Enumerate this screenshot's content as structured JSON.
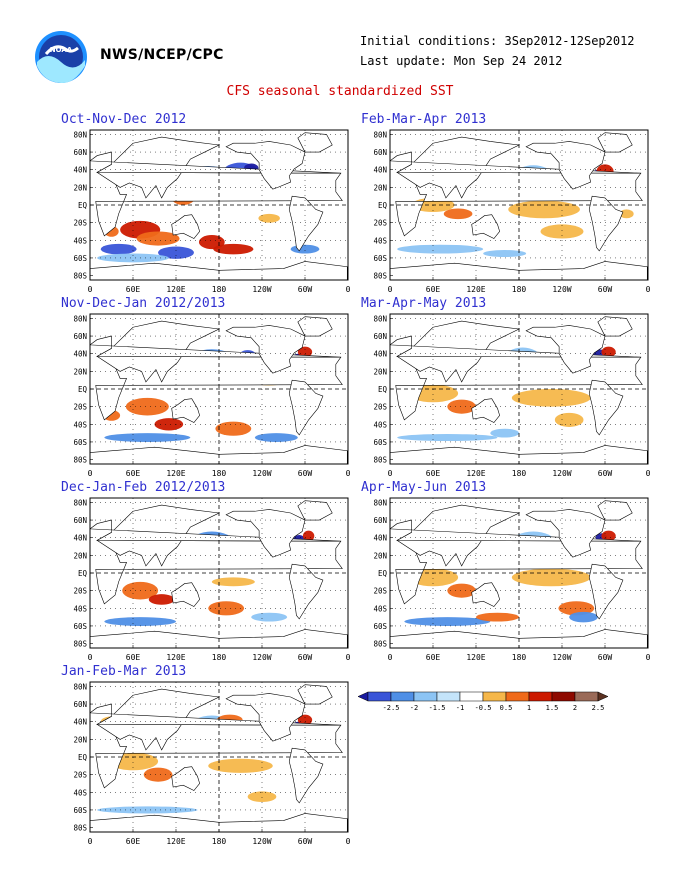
{
  "header": {
    "agency": "NWS/NCEP/CPC",
    "logo_text": "NOAA",
    "initial_conditions": "Initial conditions: 3Sep2012-12Sep2012",
    "last_update": "Last update: Mon Sep 24 2012"
  },
  "main_title": "CFS seasonal standardized SST",
  "axes": {
    "lat_labels": [
      "80N",
      "60N",
      "40N",
      "20N",
      "EQ",
      "20S",
      "40S",
      "60S",
      "80S"
    ],
    "lon_labels": [
      "0",
      "60E",
      "120E",
      "180",
      "120W",
      "60W",
      "0"
    ]
  },
  "panels": [
    {
      "id": "ond",
      "title": "Oct-Nov-Dec 2012"
    },
    {
      "id": "fma",
      "title": "Feb-Mar-Apr 2013"
    },
    {
      "id": "ndj",
      "title": "Nov-Dec-Jan 2012/2013"
    },
    {
      "id": "mam",
      "title": "Mar-Apr-May 2013"
    },
    {
      "id": "djf",
      "title": "Dec-Jan-Feb 2012/2013"
    },
    {
      "id": "amj",
      "title": "Apr-May-Jun 2013"
    },
    {
      "id": "jfm",
      "title": "Jan-Feb-Mar 2013"
    }
  ],
  "legend": {
    "labels": [
      "-2.5",
      "-2",
      "-1.5",
      "-1",
      "-0.5",
      "0.5",
      "1",
      "1.5",
      "2",
      "2.5"
    ],
    "colors": [
      "#1a1aa0",
      "#3a55d8",
      "#4f8fe6",
      "#8cc4f4",
      "#c4e4fa",
      "#ffffff",
      "#f5b74a",
      "#ef6a1a",
      "#cc1a00",
      "#8e0a00",
      "#9a6a58",
      "#5a3020"
    ]
  },
  "colors": {
    "panel_title": "#3030d0",
    "main_title": "#d00000"
  }
}
